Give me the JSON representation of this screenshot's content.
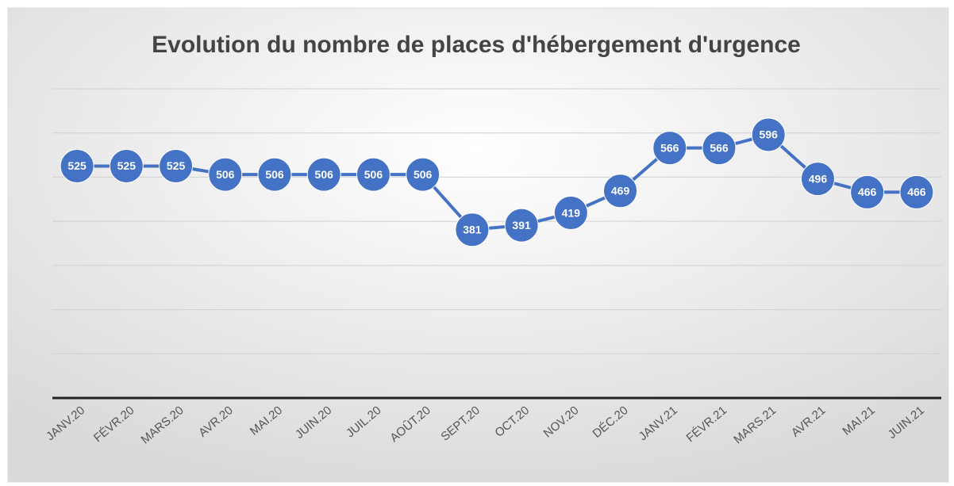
{
  "chart_data": {
    "type": "line",
    "title": "Evolution du nombre de places d'hébergement d'urgence",
    "categories": [
      "JANV.20",
      "FÉVR.20",
      "MARS.20",
      "AVR.20",
      "MAI.20",
      "JUIN.20",
      "JUIL.20",
      "AOÛT.20",
      "SEPT.20",
      "OCT.20",
      "NOV.20",
      "DÉC.20",
      "JANV.21",
      "FÉVR.21",
      "MARS.21",
      "AVR.21",
      "MAI.21",
      "JUIN.21"
    ],
    "series": [
      {
        "color": "#4472c4",
        "values": [
          525,
          525,
          525,
          506,
          506,
          506,
          506,
          506,
          381,
          391,
          419,
          469,
          566,
          566,
          596,
          496,
          466,
          466
        ]
      }
    ],
    "ylim": [
      0,
      700
    ],
    "yticks": [
      0,
      100,
      200,
      300,
      400,
      500,
      600,
      700
    ],
    "grid": true
  }
}
